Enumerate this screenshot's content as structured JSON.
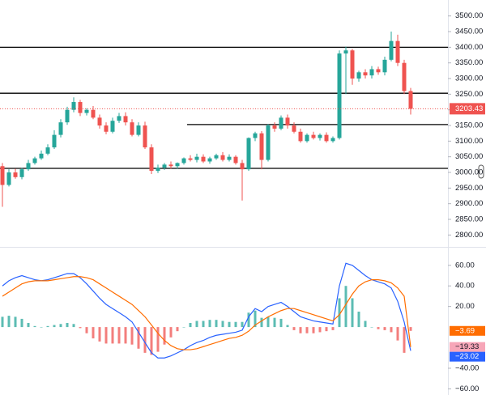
{
  "chart_data": [
    {
      "type": "candlestick",
      "up_color": "#26a69a",
      "down_color": "#ef5350",
      "open": [
        3020,
        2960,
        3000,
        2985,
        3010,
        3030,
        3045,
        3060,
        3080,
        3120,
        3160,
        3200,
        3225,
        3190,
        3200,
        3175,
        3150,
        3130,
        3165,
        3180,
        3160,
        3120,
        3150,
        3080,
        3005,
        3015,
        3025,
        3020,
        3030,
        3045,
        3040,
        3050,
        3035,
        3045,
        3055,
        3040,
        3050,
        3030,
        3010,
        3110,
        3125,
        3040,
        3150,
        3140,
        3175,
        3150,
        3130,
        3100,
        3120,
        3110,
        3120,
        3100,
        3110,
        3380,
        3390,
        3300,
        3320,
        3310,
        3330,
        3320,
        3360,
        3420,
        3350,
        3260
      ],
      "high": [
        3030,
        3010,
        3012,
        3015,
        3040,
        3050,
        3070,
        3090,
        3135,
        3170,
        3210,
        3240,
        3232,
        3205,
        3212,
        3185,
        3160,
        3175,
        3190,
        3192,
        3170,
        3160,
        3162,
        3090,
        3025,
        3030,
        3035,
        3032,
        3048,
        3055,
        3060,
        3058,
        3050,
        3060,
        3065,
        3058,
        3055,
        3040,
        3112,
        3130,
        3132,
        3155,
        3160,
        3182,
        3185,
        3160,
        3140,
        3125,
        3130,
        3125,
        3128,
        3115,
        3390,
        3402,
        3395,
        3325,
        3330,
        3340,
        3338,
        3370,
        3450,
        3440,
        3360,
        3270
      ],
      "low": [
        2890,
        2955,
        2980,
        2978,
        3005,
        3025,
        3040,
        3055,
        3075,
        3112,
        3152,
        3192,
        3180,
        3182,
        3170,
        3140,
        3122,
        3125,
        3158,
        3150,
        3115,
        3115,
        3075,
        2995,
        2998,
        3008,
        3012,
        3012,
        3025,
        3035,
        3032,
        3030,
        3028,
        3040,
        3035,
        3035,
        3025,
        2910,
        3005,
        3100,
        3010,
        3035,
        3130,
        3135,
        3140,
        3125,
        3095,
        3095,
        3105,
        3102,
        3095,
        3095,
        3105,
        3250,
        3280,
        3290,
        3300,
        3300,
        3312,
        3310,
        3355,
        3340,
        3250,
        3185
      ],
      "close": [
        2960,
        3000,
        2985,
        3010,
        3030,
        3045,
        3060,
        3080,
        3120,
        3160,
        3200,
        3225,
        3190,
        3200,
        3175,
        3150,
        3130,
        3165,
        3180,
        3160,
        3120,
        3150,
        3080,
        3005,
        3015,
        3025,
        3020,
        3030,
        3045,
        3040,
        3050,
        3035,
        3045,
        3055,
        3040,
        3050,
        3030,
        3010,
        3110,
        3125,
        3040,
        3150,
        3140,
        3175,
        3150,
        3130,
        3100,
        3120,
        3110,
        3120,
        3100,
        3110,
        3380,
        3390,
        3300,
        3320,
        3310,
        3330,
        3320,
        3360,
        3420,
        3350,
        3260,
        3203.43
      ],
      "hlines": [
        {
          "value": 3400,
          "from_index": 0
        },
        {
          "value": 3253,
          "from_index": 0
        },
        {
          "value": 3153,
          "from_index": 29
        },
        {
          "value": 3013,
          "from_index": 0
        }
      ],
      "ylim": [
        2775,
        3551
      ],
      "yticks": [
        {
          "value": 3500,
          "label": "3500.00"
        },
        {
          "value": 3450,
          "label": "3450.00"
        },
        {
          "value": 3400,
          "label": "3400.00"
        },
        {
          "value": 3350,
          "label": "3350.00"
        },
        {
          "value": 3300,
          "label": "3300.00"
        },
        {
          "value": 3250,
          "label": "3250.00"
        },
        {
          "value": 3200,
          "label": "3200.00"
        },
        {
          "value": 3150,
          "label": "3150.00"
        },
        {
          "value": 3100,
          "label": "3100.00"
        },
        {
          "value": 3050,
          "label": "3050.00"
        },
        {
          "value": 3000,
          "label": "3000.00"
        },
        {
          "value": 2950,
          "label": "2950.00"
        },
        {
          "value": 2900,
          "label": "2900.00"
        },
        {
          "value": 2850,
          "label": "2850.00"
        },
        {
          "value": 2800,
          "label": "2800.00"
        }
      ]
    },
    {
      "type": "macd",
      "series": [
        {
          "name": "Histogram",
          "kind": "histogram",
          "color": "#ef5350",
          "up_color": "#26a69a",
          "last_label": "−3.69",
          "label_color": "#ff6d00",
          "values": [
            10,
            11,
            10,
            8,
            4,
            1,
            0,
            1,
            2,
            3,
            4,
            3,
            -1,
            -6,
            -11,
            -14,
            -16,
            -16,
            -16,
            -16,
            -17,
            -21,
            -25,
            -27,
            -24,
            -17,
            -10,
            -4,
            0,
            4,
            6,
            6,
            7,
            7,
            6,
            5,
            5,
            5,
            14,
            16,
            9,
            10,
            9,
            8,
            2,
            -3,
            -6,
            -6,
            -6,
            -5,
            -4,
            -3,
            28,
            40,
            28,
            15,
            6,
            0,
            -2,
            -3,
            -5,
            -13,
            -25,
            -3.69
          ]
        },
        {
          "name": "MACD",
          "kind": "line",
          "color": "#2962ff",
          "last_label": "−23.02",
          "label_color": "#2962ff",
          "values": [
            40,
            45,
            48,
            50,
            48,
            46,
            45,
            46,
            48,
            50,
            52,
            52,
            48,
            42,
            35,
            28,
            22,
            18,
            14,
            10,
            5,
            -5,
            -15,
            -25,
            -30,
            -30,
            -28,
            -25,
            -22,
            -18,
            -15,
            -13,
            -10,
            -8,
            -7,
            -6,
            -5,
            -3,
            10,
            18,
            15,
            20,
            22,
            24,
            20,
            15,
            10,
            8,
            6,
            5,
            4,
            3,
            40,
            62,
            60,
            55,
            50,
            46,
            44,
            42,
            38,
            25,
            5,
            -23.02
          ]
        },
        {
          "name": "Signal",
          "kind": "line",
          "color": "#ff6d00",
          "last_label": "−19.33",
          "label_color": "#f7a6b8",
          "values": [
            30,
            34,
            38,
            42,
            44,
            45,
            45,
            45,
            46,
            47,
            48,
            49,
            49,
            48,
            46,
            42,
            38,
            34,
            30,
            26,
            22,
            16,
            10,
            2,
            -6,
            -13,
            -18,
            -21,
            -22,
            -22,
            -21,
            -19,
            -17,
            -15,
            -13,
            -11,
            -10,
            -8,
            -4,
            2,
            6,
            10,
            13,
            16,
            18,
            18,
            16,
            14,
            12,
            10,
            8,
            6,
            12,
            22,
            32,
            40,
            44,
            46,
            46,
            45,
            43,
            38,
            30,
            -19.33
          ]
        }
      ],
      "ylim": [
        -66,
        74
      ],
      "yticks": [
        {
          "value": 60,
          "label": "60.00"
        },
        {
          "value": 40,
          "label": "40.00"
        },
        {
          "value": 20,
          "label": "20.00"
        },
        {
          "value": -40,
          "label": "−40.00"
        },
        {
          "value": -60,
          "label": "−60.00"
        }
      ]
    }
  ]
}
